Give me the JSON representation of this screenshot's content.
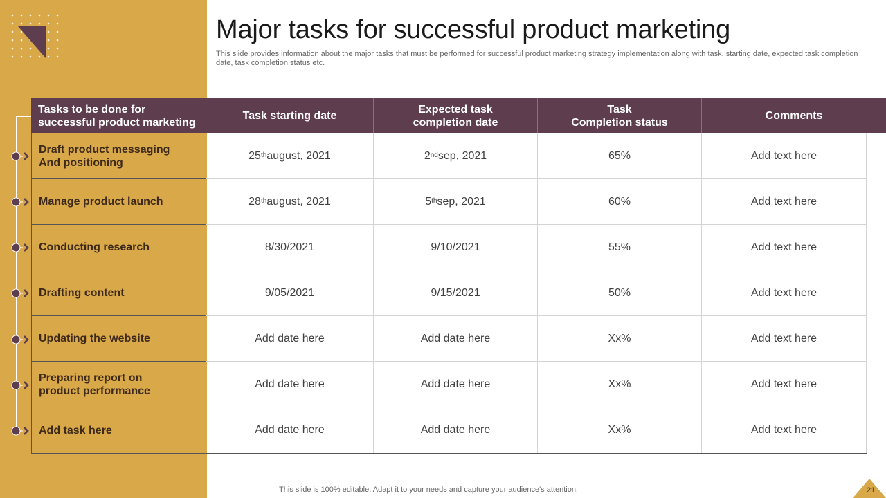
{
  "title": "Major tasks for successful product marketing",
  "subtitle": "This slide provides information about the major tasks that must be performed for successful product marketing strategy implementation along with task, starting date, expected task completion date, task completion status etc.",
  "colors": {
    "accent_gold": "#d9a848",
    "header_plum": "#5e3d4f"
  },
  "table": {
    "headers": [
      "Tasks to be done for\nsuccessful product marketing",
      "Task starting date",
      "Expected task\ncompletion date",
      "Task\nCompletion status",
      "Comments"
    ],
    "rows": [
      {
        "task": "Draft product messaging\nAnd positioning",
        "start": {
          "pre": "25",
          "sup": "th",
          "post": " august, 2021"
        },
        "end": {
          "pre": "2",
          "sup": "nd",
          "post": " sep, 2021"
        },
        "status": "65%",
        "comment": "Add text here"
      },
      {
        "task": "Manage product launch",
        "start": {
          "pre": "28",
          "sup": "th",
          "post": " august, 2021"
        },
        "end": {
          "pre": "5",
          "sup": "th",
          "post": " sep, 2021"
        },
        "status": "60%",
        "comment": "Add text here"
      },
      {
        "task": "Conducting research",
        "start": {
          "pre": "8/30/2021"
        },
        "end": {
          "pre": "9/10/2021"
        },
        "status": "55%",
        "comment": "Add text here"
      },
      {
        "task": "Drafting content",
        "start": {
          "pre": "9/05/2021"
        },
        "end": {
          "pre": "9/15/2021"
        },
        "status": "50%",
        "comment": "Add text here"
      },
      {
        "task": "Updating the website",
        "start": {
          "pre": "Add date here"
        },
        "end": {
          "pre": "Add date here"
        },
        "status": "Xx%",
        "comment": "Add text here"
      },
      {
        "task": "Preparing report on\nproduct performance",
        "start": {
          "pre": "Add date here"
        },
        "end": {
          "pre": "Add date here"
        },
        "status": "Xx%",
        "comment": "Add text here"
      },
      {
        "task": "Add task here",
        "start": {
          "pre": "Add date here"
        },
        "end": {
          "pre": "Add date here"
        },
        "status": "Xx%",
        "comment": "Add text here"
      }
    ]
  },
  "footer": {
    "note": "This slide is 100% editable. Adapt it to your needs and capture your audience's attention.",
    "page_number": "21"
  }
}
